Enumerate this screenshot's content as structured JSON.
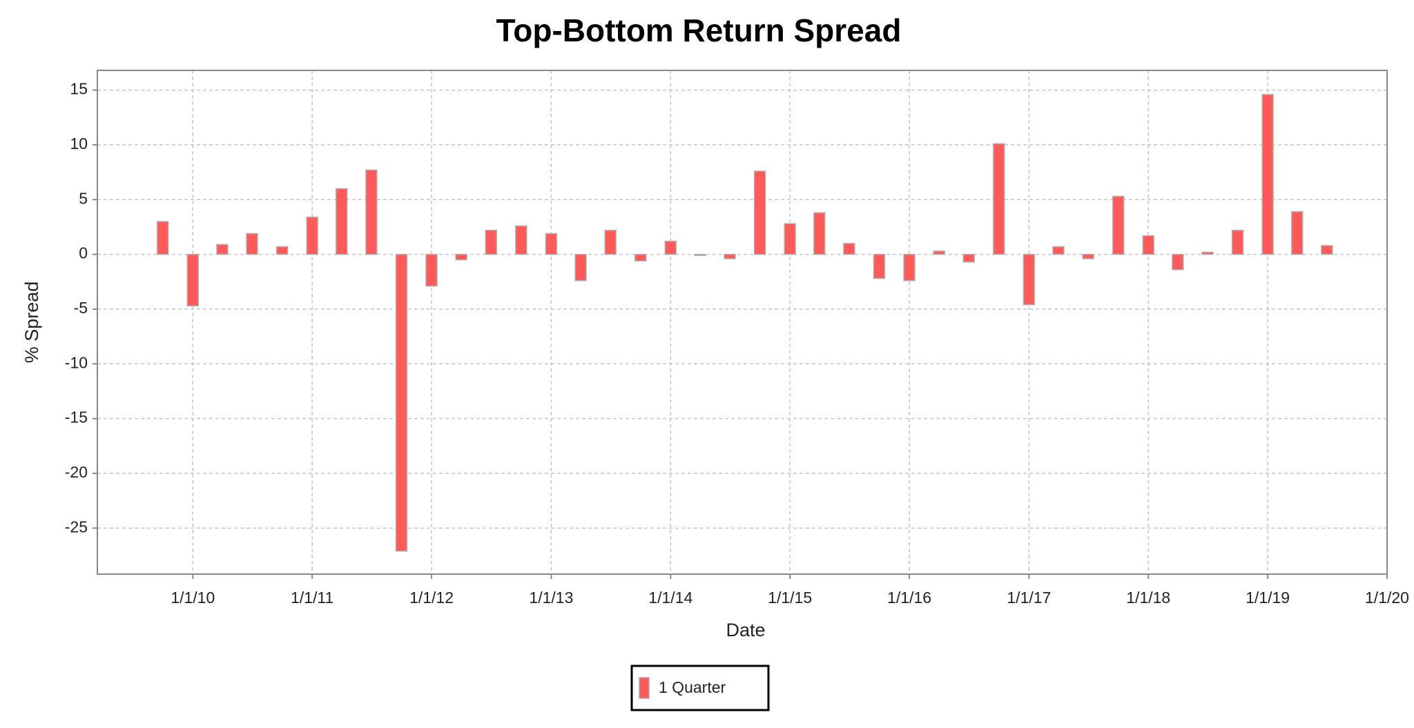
{
  "chart_data": {
    "type": "bar",
    "title": "Top-Bottom Return Spread",
    "x_label": "Date",
    "y_label": "% Spread",
    "x": [
      "2009-10-01",
      "2010-01-01",
      "2010-04-01",
      "2010-07-01",
      "2010-10-01",
      "2011-01-01",
      "2011-04-01",
      "2011-07-01",
      "2011-10-01",
      "2012-01-01",
      "2012-04-01",
      "2012-07-01",
      "2012-10-01",
      "2013-01-01",
      "2013-04-01",
      "2013-07-01",
      "2013-10-01",
      "2014-01-01",
      "2014-04-01",
      "2014-07-01",
      "2014-10-01",
      "2015-01-01",
      "2015-04-01",
      "2015-07-01",
      "2015-10-01",
      "2016-01-01",
      "2016-04-01",
      "2016-07-01",
      "2016-10-01",
      "2017-01-01",
      "2017-04-01",
      "2017-07-01",
      "2017-10-01",
      "2018-01-01",
      "2018-04-01",
      "2018-07-01",
      "2018-10-01",
      "2019-01-01",
      "2019-04-01",
      "2019-07-01"
    ],
    "series": [
      {
        "name": "1 Quarter",
        "color": "#ff5a5a",
        "values": [
          3.0,
          -4.7,
          0.9,
          1.9,
          0.7,
          3.4,
          6.0,
          7.7,
          -27.1,
          -2.9,
          -0.5,
          2.2,
          2.6,
          1.9,
          -2.4,
          2.2,
          -0.6,
          1.2,
          -0.1,
          -0.4,
          7.6,
          2.8,
          3.8,
          1.0,
          -2.2,
          -2.4,
          0.3,
          -0.7,
          10.1,
          -4.6,
          0.7,
          -0.4,
          5.3,
          1.7,
          -1.4,
          0.2,
          2.2,
          14.6,
          3.9,
          0.8
        ]
      }
    ],
    "xlim": [
      "2009-03-15",
      "2020-01-01"
    ],
    "xticks": [
      {
        "value": "2010-01-01",
        "label": "1/1/10"
      },
      {
        "value": "2011-01-01",
        "label": "1/1/11"
      },
      {
        "value": "2012-01-01",
        "label": "1/1/12"
      },
      {
        "value": "2013-01-01",
        "label": "1/1/13"
      },
      {
        "value": "2014-01-01",
        "label": "1/1/14"
      },
      {
        "value": "2015-01-01",
        "label": "1/1/15"
      },
      {
        "value": "2016-01-01",
        "label": "1/1/16"
      },
      {
        "value": "2017-01-01",
        "label": "1/1/17"
      },
      {
        "value": "2018-01-01",
        "label": "1/1/18"
      },
      {
        "value": "2019-01-01",
        "label": "1/1/19"
      },
      {
        "value": "2020-01-01",
        "label": "1/1/20"
      }
    ],
    "ylim": [
      -29.2,
      16.8
    ],
    "yticks": [
      -25,
      -20,
      -15,
      -10,
      -5,
      0,
      5,
      10,
      15
    ],
    "grid": true
  }
}
